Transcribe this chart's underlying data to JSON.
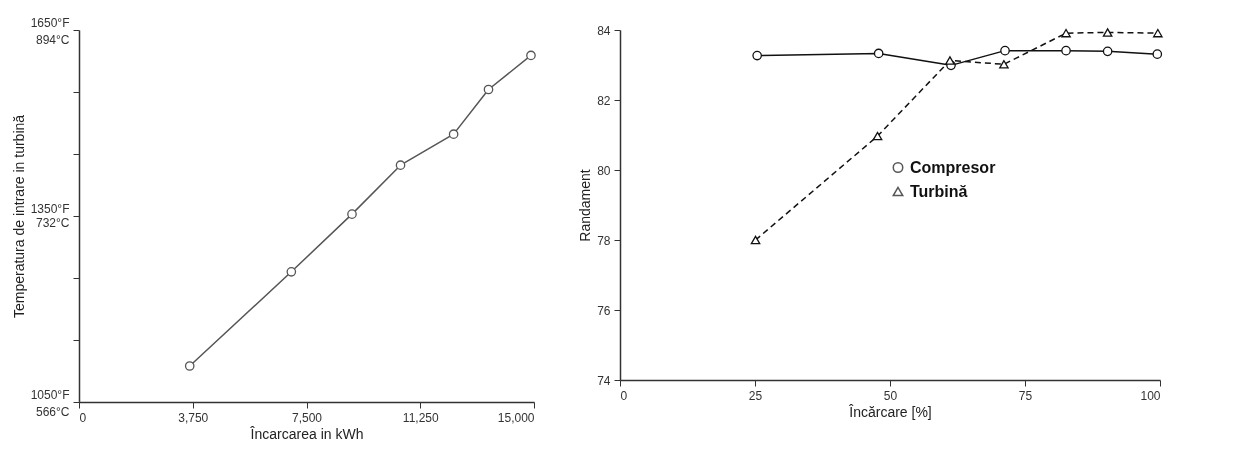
{
  "chart_data": [
    {
      "type": "line",
      "xlabel": "Încarcarea in kWh",
      "ylabel": "Temperatura de intrare in turbină",
      "xlim": [
        0,
        15000
      ],
      "ylim": [
        1050,
        1650
      ],
      "xticks": [
        0,
        {
          "value": 3750,
          "label": "3,750"
        },
        {
          "value": 7500,
          "label": "7,500"
        },
        {
          "value": 11250,
          "label": "11,250"
        },
        {
          "value": 15000,
          "label": "15,000"
        }
      ],
      "yticks": [
        {
          "value": 1050,
          "label": "1050°F"
        },
        {
          "value": 1150,
          "label": null
        },
        {
          "value": 1250,
          "label": null
        },
        {
          "value": 1350,
          "label": "1350°F"
        },
        {
          "value": 1450,
          "label": null
        },
        {
          "value": 1550,
          "label": null
        },
        {
          "value": 1650,
          "label": "1650°F"
        }
      ],
      "y2lim": [
        566,
        894
      ],
      "y2ticks": [
        {
          "value": 566,
          "label": "566°C"
        },
        {
          "value": 732,
          "label": "732°C"
        },
        {
          "value": 894,
          "label": "894°C"
        }
      ],
      "grid": false,
      "legend": false,
      "series": [
        {
          "color": "#555555",
          "marker": "circle",
          "line_style": "solid",
          "x": [
            3650,
            7000,
            9000,
            10600,
            12350,
            13500,
            14900
          ],
          "values": [
            1108,
            1260,
            1353,
            1432,
            1482,
            1554,
            1609
          ]
        }
      ]
    },
    {
      "type": "line",
      "xlabel": "Încărcare [%]",
      "ylabel": "Randament",
      "xlim": [
        0,
        100
      ],
      "ylim": [
        74,
        84
      ],
      "xticks": [
        0,
        25,
        50,
        75,
        100
      ],
      "yticks": [
        74,
        76,
        78,
        80,
        82,
        84
      ],
      "grid": false,
      "legend": "right",
      "series": [
        {
          "name": "Compresor",
          "color": "#111111",
          "marker": "circle",
          "line_style": "solid",
          "x": [
            25.4,
            47.9,
            61.3,
            71.3,
            82.6,
            90.3,
            99.5
          ],
          "values": [
            83.27,
            83.33,
            82.99,
            83.41,
            83.41,
            83.39,
            83.31
          ]
        },
        {
          "name": "Turbină",
          "color": "#111111",
          "marker": "triangle",
          "line_style": "dashed",
          "x": [
            25.1,
            47.7,
            61.1,
            71.1,
            82.6,
            90.3,
            99.6
          ],
          "values": [
            78.0,
            80.97,
            83.13,
            83.02,
            83.91,
            83.93,
            83.91
          ]
        }
      ]
    }
  ]
}
